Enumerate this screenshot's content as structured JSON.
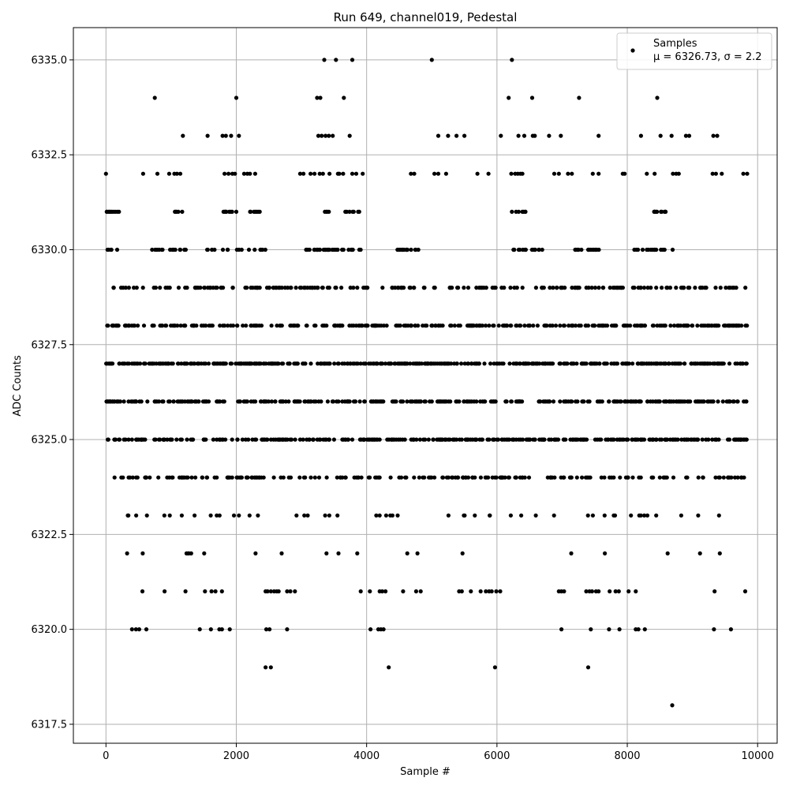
{
  "chart_data": {
    "type": "scatter",
    "title": "Run 649, channel019, Pedestal",
    "xlabel": "Sample #",
    "ylabel": "ADC Counts",
    "xlim": [
      -500,
      10300
    ],
    "ylim": [
      6317.0,
      6335.85
    ],
    "grid": true,
    "marker_color": "#000000",
    "grid_color": "#b0b0b0",
    "legend": {
      "placement": "top-right",
      "series_name": "Samples",
      "stats_text": "μ = 6326.73, σ = 2.2"
    },
    "x_ticks": [
      0,
      2000,
      4000,
      6000,
      8000,
      10000
    ],
    "x_tick_labels": [
      "0",
      "2000",
      "4000",
      "6000",
      "8000",
      "10000"
    ],
    "y_ticks": [
      6317.5,
      6320.0,
      6322.5,
      6325.0,
      6327.5,
      6330.0,
      6332.5,
      6335.0
    ],
    "y_tick_labels": [
      "6317.5",
      "6320.0",
      "6322.5",
      "6325.0",
      "6327.5",
      "6330.0",
      "6332.5",
      "6335.0"
    ],
    "sample_range": [
      0,
      9840
    ],
    "levels": [
      {
        "y": 6335,
        "ranges": [],
        "points": [
          3350,
          3530,
          3780,
          5000,
          6230
        ]
      },
      {
        "y": 6334,
        "ranges": [],
        "points": [
          750,
          2000,
          3240,
          3290,
          3650,
          6180,
          6540,
          7260,
          8460
        ]
      },
      {
        "y": 6333,
        "ranges": [],
        "points": [
          1180,
          1560,
          1790,
          1840,
          1920,
          2040,
          3260,
          3310,
          3370,
          3420,
          3480,
          3740,
          5100,
          5250,
          5380,
          5500,
          6060,
          6330,
          6420,
          6550,
          6580,
          6800,
          6980,
          7560,
          8210,
          8510,
          8680,
          8900,
          8950,
          9320,
          9380
        ]
      },
      {
        "y": 6332,
        "ranges": [],
        "points": [
          0,
          570,
          790,
          970,
          1050,
          1090,
          1140,
          1820,
          1880,
          1940,
          1980,
          2120,
          2170,
          2210,
          2290,
          2980,
          3030,
          3140,
          3200,
          3280,
          3330,
          3430,
          3560,
          3580,
          3640,
          3780,
          3840,
          3940,
          4680,
          4730,
          5040,
          5100,
          5220,
          5700,
          5870,
          6220,
          6280,
          6320,
          6360,
          6390,
          6880,
          6950,
          7090,
          7150,
          7470,
          7560,
          7930,
          7960,
          8300,
          8420,
          8700,
          8750,
          8790,
          9310,
          9360,
          9450,
          9780,
          9840
        ]
      },
      {
        "y": 6331,
        "ranges": [
          [
            0,
            220
          ],
          [
            1050,
            1180
          ],
          [
            1800,
            2000
          ],
          [
            2200,
            2440
          ],
          [
            3320,
            3420
          ],
          [
            3650,
            3920
          ],
          [
            6210,
            6450
          ],
          [
            8380,
            8620
          ]
        ],
        "density": 0.15,
        "seed": 31
      },
      {
        "y": 6330,
        "ranges": [
          [
            0,
            180
          ],
          [
            700,
            1300
          ],
          [
            1550,
            2450
          ],
          [
            3000,
            3950
          ],
          [
            4450,
            4800
          ],
          [
            6250,
            6700
          ],
          [
            7200,
            7600
          ],
          [
            8100,
            8700
          ]
        ],
        "density": 0.12,
        "seed": 30
      },
      {
        "y": 6329,
        "ranges": [
          [
            0,
            9840
          ]
        ],
        "density": 0.08,
        "seed": 29
      },
      {
        "y": 6328,
        "ranges": [
          [
            0,
            9840
          ]
        ],
        "density": 0.14,
        "seed": 28
      },
      {
        "y": 6327,
        "ranges": [
          [
            0,
            9840
          ]
        ],
        "density": 0.16,
        "seed": 27
      },
      {
        "y": 6326,
        "ranges": [
          [
            0,
            9840
          ]
        ],
        "density": 0.15,
        "seed": 26
      },
      {
        "y": 6325,
        "ranges": [
          [
            0,
            9840
          ]
        ],
        "density": 0.12,
        "seed": 25
      },
      {
        "y": 6324,
        "ranges": [
          [
            0,
            9840
          ]
        ],
        "density": 0.08,
        "seed": 24
      },
      {
        "y": 6323,
        "ranges": [
          [
            0,
            9840
          ]
        ],
        "density": 0.025,
        "seed": 23
      },
      {
        "y": 6322,
        "ranges": [
          [
            100,
            9840
          ]
        ],
        "density": 0.012,
        "seed": 22
      },
      {
        "y": 6321,
        "ranges": [],
        "points": [
          560,
          900,
          1220,
          1520,
          1620,
          1680,
          1780,
          2450,
          2480,
          2530,
          2580,
          2620,
          2650,
          2780,
          2830,
          2900,
          3910,
          4050,
          4200,
          4240,
          4290,
          4560,
          4760,
          4830,
          5420,
          5460,
          5600,
          5750,
          5830,
          5880,
          5920,
          5990,
          6050,
          6950,
          6990,
          7030,
          7370,
          7420,
          7460,
          7520,
          7560,
          7730,
          7820,
          7870,
          8020,
          8130,
          9340,
          9810
        ]
      },
      {
        "y": 6320,
        "ranges": [],
        "points": [
          400,
          460,
          510,
          620,
          1440,
          1610,
          1740,
          1780,
          1900,
          2460,
          2510,
          2780,
          4060,
          4180,
          4220,
          4260,
          6990,
          7440,
          7720,
          7880,
          8130,
          8170,
          8270,
          9330,
          9590
        ]
      },
      {
        "y": 6319,
        "ranges": [],
        "points": [
          2450,
          2530,
          4340,
          5970,
          7400
        ]
      },
      {
        "y": 6318,
        "ranges": [],
        "points": [
          8690
        ]
      }
    ]
  }
}
